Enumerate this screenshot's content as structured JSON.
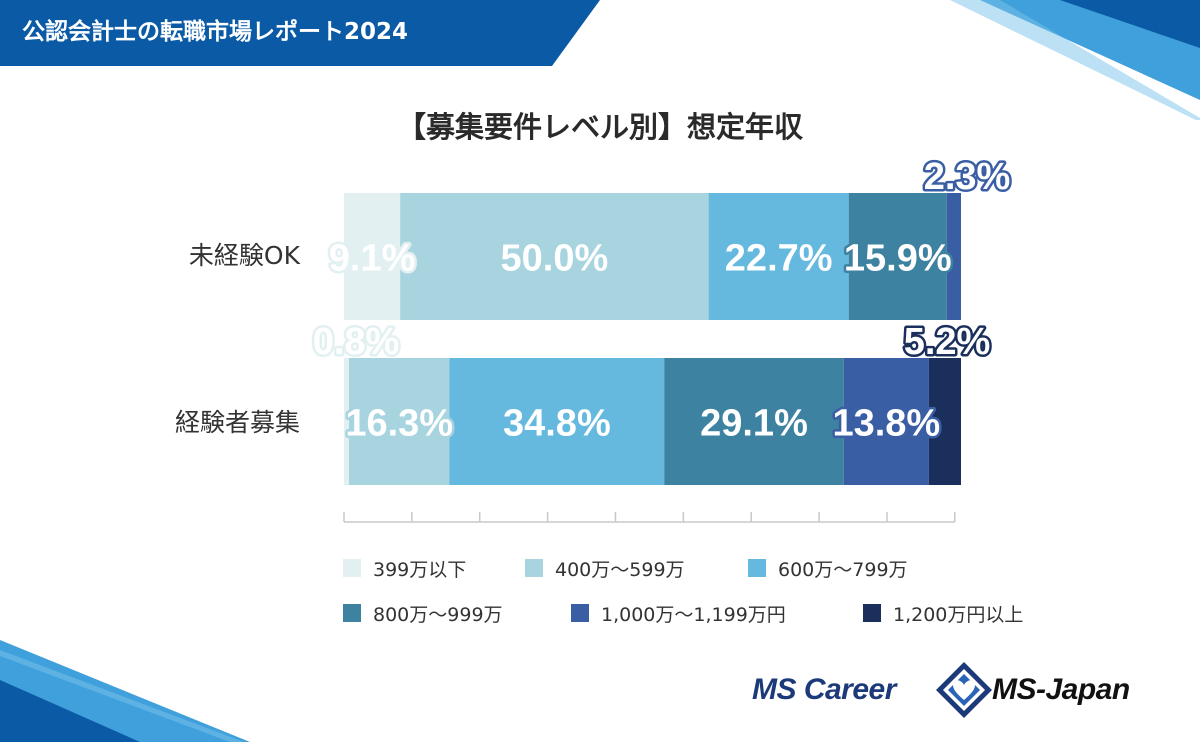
{
  "header": {
    "title": "公認会計士の転職市場レポート2024"
  },
  "logos": {
    "career": "MS Career",
    "japan": "MS-Japan"
  },
  "icons": {
    "brand_mark": "diamond-heart-logo-icon"
  },
  "colors": {
    "header": "#0a5aa6",
    "accent_light": "#1f8fd6",
    "text_dark": "#2a2a2a",
    "logo_navy": "#1c3a7a"
  },
  "chart_data": {
    "type": "bar",
    "orientation": "horizontal",
    "stacked": true,
    "title": "【募集要件レベル別】想定年収",
    "categories": [
      "未経験OK",
      "経験者募集"
    ],
    "series": [
      {
        "name": "399万以下",
        "color": "#e3f0f2",
        "values": [
          9.1,
          0.8
        ],
        "labels": [
          "9.1%",
          "0.8%"
        ]
      },
      {
        "name": "400万〜599万",
        "color": "#a8d4e0",
        "values": [
          50.0,
          16.3
        ],
        "labels": [
          "50.0%",
          "16.3%"
        ]
      },
      {
        "name": "600万〜799万",
        "color": "#65b8de",
        "values": [
          22.7,
          34.8
        ],
        "labels": [
          "22.7%",
          "34.8%"
        ]
      },
      {
        "name": "800万〜999万",
        "color": "#3d82a0",
        "values": [
          15.9,
          29.1
        ],
        "labels": [
          "15.9%",
          "29.1%"
        ]
      },
      {
        "name": "1,000万〜1,199万円",
        "color": "#3a5ea4",
        "values": [
          2.3,
          13.8
        ],
        "labels": [
          "2.3%",
          "13.8%"
        ]
      },
      {
        "name": "1,200万円以上",
        "color": "#1b2f5c",
        "values": [
          0.0,
          5.2
        ],
        "labels": [
          "",
          "5.2%"
        ]
      }
    ],
    "xlim": [
      0,
      100
    ],
    "grid": false,
    "legend": "bottom"
  }
}
